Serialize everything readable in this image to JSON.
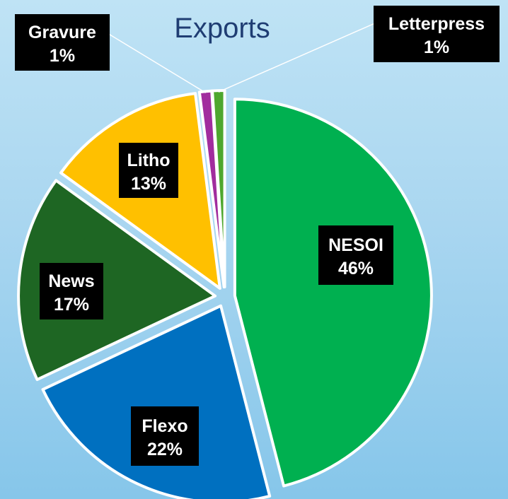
{
  "chart_data": {
    "type": "pie",
    "title": "Exports",
    "slices": [
      {
        "label": "NESOI",
        "value": 46,
        "value_label": "46%",
        "color": "#00b050"
      },
      {
        "label": "Flexo",
        "value": 22,
        "value_label": "22%",
        "color": "#0070c0"
      },
      {
        "label": "News",
        "value": 17,
        "value_label": "17%",
        "color": "#1e6623"
      },
      {
        "label": "Litho",
        "value": 13,
        "value_label": "13%",
        "color": "#ffc000"
      },
      {
        "label": "Gravure",
        "value": 1,
        "value_label": "1%",
        "color": "#a12c9e"
      },
      {
        "label": "Letterpress",
        "value": 1,
        "value_label": "1%",
        "color": "#4ea72e"
      }
    ],
    "start": "12 o'clock",
    "direction": "clockwise",
    "exploded": true,
    "legend": "none",
    "background_color": "#9fd2ef",
    "title_color": "#1f3d73"
  }
}
